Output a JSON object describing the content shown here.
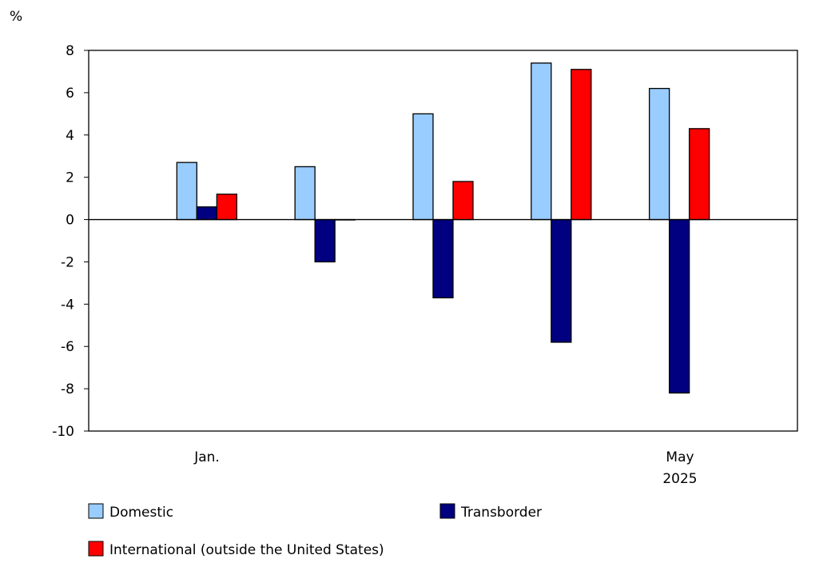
{
  "chart_data": {
    "type": "bar",
    "ylabel": "%",
    "ylim": [
      -10,
      8
    ],
    "yticks": [
      8,
      6,
      4,
      2,
      0,
      -2,
      -4,
      -6,
      -8,
      -10
    ],
    "categories": [
      "Jan.",
      "",
      "",
      "",
      "May"
    ],
    "x_sublabel": "2025",
    "grid": false,
    "legend_position": "bottom",
    "series": [
      {
        "name": "Domestic",
        "color": "#99ccff",
        "values": [
          2.7,
          2.5,
          5.0,
          7.4,
          6.2
        ]
      },
      {
        "name": "Transborder",
        "color": "#000080",
        "values": [
          0.6,
          -2.0,
          -3.7,
          -5.8,
          -8.2
        ]
      },
      {
        "name": "International (outside the United States)",
        "color": "#ff0000",
        "values": [
          1.2,
          0.0,
          1.8,
          7.1,
          4.3
        ]
      }
    ]
  }
}
